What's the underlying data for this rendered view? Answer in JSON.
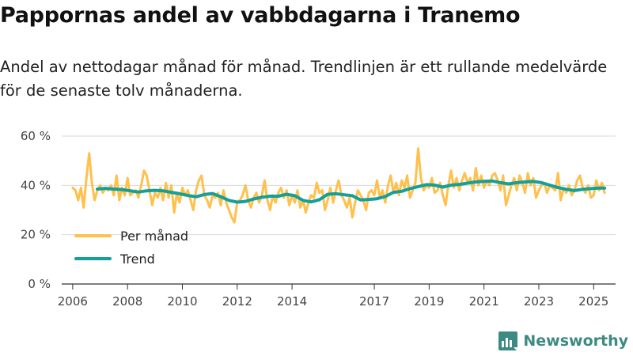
{
  "title": "Pappornas andel av vabbdagarna i Tranemo",
  "subtitle": "Andel av nettodagar månad för månad. Trendlinjen är ett rullande medelvärde för de senaste tolv månaderna.",
  "brand": "Newsworthy",
  "colors": {
    "monthly": "#ffc04d",
    "trend": "#14a098",
    "grid": "#d9d9d9",
    "axis": "#333333",
    "brand": "#3d8a83"
  },
  "chart_data": {
    "type": "line",
    "title": "Pappornas andel av vabbdagarna i Tranemo",
    "xlabel": "",
    "ylabel": "",
    "xlim": [
      2005.6,
      2025.8
    ],
    "ylim": [
      0,
      60
    ],
    "y_ticks": [
      0,
      20,
      40,
      60
    ],
    "y_tick_labels": [
      "0 %",
      "20 %",
      "40 %",
      "60 %"
    ],
    "x_ticks": [
      2006,
      2008,
      2010,
      2012,
      2014,
      2017,
      2019,
      2021,
      2023,
      2025
    ],
    "x_tick_labels": [
      "2006",
      "2008",
      "2010",
      "2012",
      "2014",
      "2017",
      "2019",
      "2021",
      "2023",
      "2025"
    ],
    "legend": "bottom-left",
    "series": [
      {
        "name": "Per månad",
        "points": [
          [
            2006.0,
            39
          ],
          [
            2006.1,
            38
          ],
          [
            2006.2,
            34
          ],
          [
            2006.3,
            39
          ],
          [
            2006.4,
            31
          ],
          [
            2006.5,
            43
          ],
          [
            2006.6,
            53
          ],
          [
            2006.7,
            41
          ],
          [
            2006.8,
            34
          ],
          [
            2006.9,
            38
          ],
          [
            2007.0,
            40
          ],
          [
            2007.1,
            37
          ],
          [
            2007.2,
            39
          ],
          [
            2007.3,
            38
          ],
          [
            2007.4,
            40
          ],
          [
            2007.5,
            36
          ],
          [
            2007.6,
            44
          ],
          [
            2007.7,
            34
          ],
          [
            2007.8,
            39
          ],
          [
            2007.9,
            36
          ],
          [
            2008.0,
            43
          ],
          [
            2008.1,
            36
          ],
          [
            2008.2,
            37
          ],
          [
            2008.3,
            38
          ],
          [
            2008.4,
            35
          ],
          [
            2008.5,
            40
          ],
          [
            2008.6,
            46
          ],
          [
            2008.7,
            44
          ],
          [
            2008.8,
            38
          ],
          [
            2008.9,
            32
          ],
          [
            2009.0,
            37
          ],
          [
            2009.1,
            35
          ],
          [
            2009.2,
            39
          ],
          [
            2009.3,
            34
          ],
          [
            2009.4,
            41
          ],
          [
            2009.5,
            35
          ],
          [
            2009.6,
            40
          ],
          [
            2009.7,
            29
          ],
          [
            2009.8,
            37
          ],
          [
            2009.9,
            33
          ],
          [
            2010.0,
            39
          ],
          [
            2010.1,
            36
          ],
          [
            2010.2,
            38
          ],
          [
            2010.3,
            34
          ],
          [
            2010.4,
            30
          ],
          [
            2010.5,
            38
          ],
          [
            2010.6,
            42
          ],
          [
            2010.7,
            44
          ],
          [
            2010.8,
            36
          ],
          [
            2010.9,
            34
          ],
          [
            2011.0,
            31
          ],
          [
            2011.1,
            36
          ],
          [
            2011.2,
            35
          ],
          [
            2011.3,
            37
          ],
          [
            2011.4,
            32
          ],
          [
            2011.5,
            38
          ],
          [
            2011.6,
            33
          ],
          [
            2011.7,
            30
          ],
          [
            2011.8,
            27
          ],
          [
            2011.9,
            25
          ],
          [
            2012.0,
            33
          ],
          [
            2012.1,
            34
          ],
          [
            2012.2,
            36
          ],
          [
            2012.3,
            40
          ],
          [
            2012.4,
            34
          ],
          [
            2012.5,
            31
          ],
          [
            2012.6,
            35
          ],
          [
            2012.7,
            37
          ],
          [
            2012.8,
            33
          ],
          [
            2012.9,
            36
          ],
          [
            2013.0,
            42
          ],
          [
            2013.1,
            34
          ],
          [
            2013.2,
            30
          ],
          [
            2013.3,
            36
          ],
          [
            2013.4,
            33
          ],
          [
            2013.5,
            37
          ],
          [
            2013.6,
            39
          ],
          [
            2013.7,
            35
          ],
          [
            2013.8,
            38
          ],
          [
            2013.9,
            32
          ],
          [
            2014.0,
            36
          ],
          [
            2014.1,
            33
          ],
          [
            2014.2,
            38
          ],
          [
            2014.3,
            31
          ],
          [
            2014.4,
            34
          ],
          [
            2014.5,
            29
          ],
          [
            2014.6,
            33
          ],
          [
            2014.7,
            36
          ],
          [
            2014.8,
            35
          ],
          [
            2014.9,
            41
          ],
          [
            2015.0,
            37
          ],
          [
            2015.1,
            38
          ],
          [
            2015.2,
            30
          ],
          [
            2015.3,
            34
          ],
          [
            2015.4,
            39
          ],
          [
            2015.5,
            33
          ],
          [
            2015.6,
            38
          ],
          [
            2015.7,
            42
          ],
          [
            2015.8,
            36
          ],
          [
            2015.9,
            34
          ],
          [
            2016.0,
            31
          ],
          [
            2016.1,
            35
          ],
          [
            2016.2,
            27
          ],
          [
            2016.3,
            33
          ],
          [
            2016.4,
            38
          ],
          [
            2016.5,
            36
          ],
          [
            2016.6,
            34
          ],
          [
            2016.7,
            30
          ],
          [
            2016.8,
            37
          ],
          [
            2016.9,
            38
          ],
          [
            2017.0,
            36
          ],
          [
            2017.1,
            42
          ],
          [
            2017.2,
            35
          ],
          [
            2017.3,
            38
          ],
          [
            2017.4,
            33
          ],
          [
            2017.5,
            40
          ],
          [
            2017.6,
            44
          ],
          [
            2017.7,
            37
          ],
          [
            2017.8,
            41
          ],
          [
            2017.9,
            36
          ],
          [
            2018.0,
            42
          ],
          [
            2018.1,
            39
          ],
          [
            2018.2,
            44
          ],
          [
            2018.3,
            35
          ],
          [
            2018.4,
            38
          ],
          [
            2018.5,
            41
          ],
          [
            2018.6,
            55
          ],
          [
            2018.7,
            43
          ],
          [
            2018.8,
            38
          ],
          [
            2018.9,
            40
          ],
          [
            2019.0,
            39
          ],
          [
            2019.1,
            43
          ],
          [
            2019.2,
            37
          ],
          [
            2019.3,
            38
          ],
          [
            2019.4,
            41
          ],
          [
            2019.5,
            36
          ],
          [
            2019.6,
            32
          ],
          [
            2019.7,
            40
          ],
          [
            2019.8,
            46
          ],
          [
            2019.9,
            39
          ],
          [
            2020.0,
            43
          ],
          [
            2020.1,
            38
          ],
          [
            2020.2,
            42
          ],
          [
            2020.3,
            45
          ],
          [
            2020.4,
            41
          ],
          [
            2020.5,
            43
          ],
          [
            2020.6,
            38
          ],
          [
            2020.7,
            47
          ],
          [
            2020.8,
            40
          ],
          [
            2020.9,
            44
          ],
          [
            2021.0,
            39
          ],
          [
            2021.1,
            42
          ],
          [
            2021.2,
            40
          ],
          [
            2021.3,
            44
          ],
          [
            2021.4,
            45
          ],
          [
            2021.5,
            42
          ],
          [
            2021.6,
            38
          ],
          [
            2021.7,
            44
          ],
          [
            2021.8,
            32
          ],
          [
            2021.9,
            36
          ],
          [
            2022.0,
            40
          ],
          [
            2022.1,
            43
          ],
          [
            2022.2,
            38
          ],
          [
            2022.3,
            44
          ],
          [
            2022.4,
            41
          ],
          [
            2022.5,
            37
          ],
          [
            2022.6,
            45
          ],
          [
            2022.7,
            40
          ],
          [
            2022.8,
            43
          ],
          [
            2022.9,
            35
          ],
          [
            2023.0,
            38
          ],
          [
            2023.1,
            40
          ],
          [
            2023.2,
            41
          ],
          [
            2023.3,
            37
          ],
          [
            2023.4,
            40
          ],
          [
            2023.5,
            39
          ],
          [
            2023.6,
            38
          ],
          [
            2023.7,
            45
          ],
          [
            2023.8,
            34
          ],
          [
            2023.9,
            39
          ],
          [
            2024.0,
            37
          ],
          [
            2024.1,
            40
          ],
          [
            2024.2,
            36
          ],
          [
            2024.3,
            38
          ],
          [
            2024.4,
            42
          ],
          [
            2024.5,
            44
          ],
          [
            2024.6,
            39
          ],
          [
            2024.7,
            37
          ],
          [
            2024.8,
            40
          ],
          [
            2024.9,
            35
          ],
          [
            2025.0,
            36
          ],
          [
            2025.1,
            42
          ],
          [
            2025.2,
            38
          ],
          [
            2025.3,
            41
          ],
          [
            2025.4,
            37
          ]
        ]
      },
      {
        "name": "Trend",
        "points": [
          [
            2006.9,
            38.5
          ],
          [
            2007.2,
            38.8
          ],
          [
            2007.5,
            38.5
          ],
          [
            2007.8,
            38.3
          ],
          [
            2008.1,
            37.8
          ],
          [
            2008.4,
            37.3
          ],
          [
            2008.7,
            37.8
          ],
          [
            2009.0,
            38
          ],
          [
            2009.3,
            37.8
          ],
          [
            2009.6,
            37.2
          ],
          [
            2009.9,
            36.6
          ],
          [
            2010.2,
            35.9
          ],
          [
            2010.5,
            35.4
          ],
          [
            2010.8,
            36.3
          ],
          [
            2011.1,
            36.7
          ],
          [
            2011.4,
            35.4
          ],
          [
            2011.7,
            33.9
          ],
          [
            2012.0,
            33.2
          ],
          [
            2012.3,
            33.5
          ],
          [
            2012.6,
            34.5
          ],
          [
            2012.9,
            35.2
          ],
          [
            2013.2,
            35.6
          ],
          [
            2013.5,
            35.6
          ],
          [
            2013.8,
            36.4
          ],
          [
            2014.1,
            35.8
          ],
          [
            2014.4,
            33.9
          ],
          [
            2014.7,
            33.3
          ],
          [
            2015.0,
            34.2
          ],
          [
            2015.3,
            36.4
          ],
          [
            2015.6,
            36.6
          ],
          [
            2015.9,
            36.2
          ],
          [
            2016.2,
            35.8
          ],
          [
            2016.5,
            34.1
          ],
          [
            2016.8,
            34.3
          ],
          [
            2017.1,
            34.6
          ],
          [
            2017.4,
            35.5
          ],
          [
            2017.7,
            37.2
          ],
          [
            2018.0,
            37.6
          ],
          [
            2018.3,
            38.7
          ],
          [
            2018.6,
            39.5
          ],
          [
            2018.9,
            40.3
          ],
          [
            2019.2,
            40.1
          ],
          [
            2019.5,
            39.3
          ],
          [
            2019.8,
            40.1
          ],
          [
            2020.1,
            40.4
          ],
          [
            2020.4,
            40.9
          ],
          [
            2020.7,
            41.4
          ],
          [
            2021.0,
            41.6
          ],
          [
            2021.3,
            41.8
          ],
          [
            2021.6,
            41.1
          ],
          [
            2021.9,
            40.6
          ],
          [
            2022.2,
            41.1
          ],
          [
            2022.5,
            41.4
          ],
          [
            2022.8,
            41.6
          ],
          [
            2023.1,
            41.1
          ],
          [
            2023.4,
            40.1
          ],
          [
            2023.7,
            39.1
          ],
          [
            2024.0,
            38.4
          ],
          [
            2024.3,
            37.9
          ],
          [
            2024.6,
            38.4
          ],
          [
            2024.9,
            38.7
          ],
          [
            2025.2,
            38.9
          ],
          [
            2025.4,
            38.9
          ]
        ]
      }
    ]
  }
}
